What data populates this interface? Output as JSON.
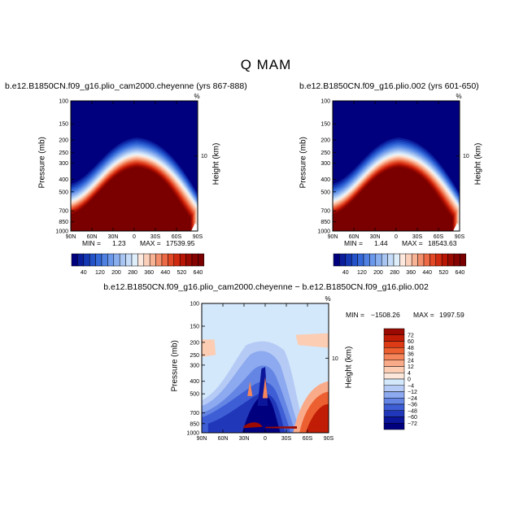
{
  "page_title": "Q MAM",
  "chart_data": [
    {
      "type": "contour",
      "title": "b.e12.B1850CN.f09_g16.plio_cam2000.cheyenne (yrs 867-888)",
      "xlabel": "",
      "ylabel": "Pressure (mb)",
      "ylabel_right": "Height (km)",
      "x_ticks": [
        "90N",
        "60N",
        "30N",
        "0",
        "30S",
        "60S",
        "90S"
      ],
      "y_ticks": [
        "100",
        "150",
        "200",
        "250",
        "300",
        "400",
        "500",
        "700",
        "850",
        "1000"
      ],
      "y_right_ticks": [
        "10"
      ],
      "y_scale": "log",
      "min_label": "MIN =",
      "min_value": "1.23",
      "max_label": "MAX =",
      "max_value": "17539.95",
      "top_marker": "%",
      "colorbar_labels": [
        "40",
        "120",
        "200",
        "280",
        "360",
        "440",
        "520",
        "640"
      ],
      "levels": [
        20,
        40,
        60,
        80,
        100,
        120,
        140,
        160,
        180,
        200,
        220,
        240,
        260,
        280,
        300,
        320,
        340,
        360,
        380,
        400,
        420,
        440,
        460,
        480,
        500,
        520,
        540,
        560,
        580,
        600,
        620,
        640
      ]
    },
    {
      "type": "contour",
      "title": "b.e12.B1850CN.f09_g16.plio.002 (yrs 601-650)",
      "xlabel": "",
      "ylabel": "Pressure (mb)",
      "ylabel_right": "Height (km)",
      "x_ticks": [
        "90N",
        "60N",
        "30N",
        "0",
        "30S",
        "60S",
        "90S"
      ],
      "y_ticks": [
        "100",
        "150",
        "200",
        "250",
        "300",
        "400",
        "500",
        "700",
        "850",
        "1000"
      ],
      "y_right_ticks": [
        "10"
      ],
      "y_scale": "log",
      "min_label": "MIN =",
      "min_value": "1.44",
      "max_label": "MAX =",
      "max_value": "18543.63",
      "top_marker": "%",
      "colorbar_labels": [
        "40",
        "120",
        "200",
        "280",
        "360",
        "440",
        "520",
        "640"
      ],
      "levels": [
        20,
        40,
        60,
        80,
        100,
        120,
        140,
        160,
        180,
        200,
        220,
        240,
        260,
        280,
        300,
        320,
        340,
        360,
        380,
        400,
        420,
        440,
        460,
        480,
        500,
        520,
        540,
        560,
        580,
        600,
        620,
        640
      ]
    },
    {
      "type": "contour",
      "title": "b.e12.B1850CN.f09_g16.plio_cam2000.cheyenne − b.e12.B1850CN.f09_g16.plio.002",
      "xlabel": "",
      "ylabel": "Pressure (mb)",
      "ylabel_right": "Height (km)",
      "x_ticks": [
        "90N",
        "60N",
        "30N",
        "0",
        "30S",
        "60S",
        "90S"
      ],
      "y_ticks": [
        "100",
        "150",
        "200",
        "250",
        "300",
        "400",
        "500",
        "700",
        "850",
        "1000"
      ],
      "y_right_ticks": [
        "10"
      ],
      "y_scale": "log",
      "min_label": "MIN =",
      "min_value": "−1508.26",
      "max_label": "MAX =",
      "max_value": "1997.59",
      "top_marker": "%",
      "colorbar_labels": [
        "72",
        "60",
        "48",
        "36",
        "24",
        "12",
        "4",
        "0",
        "−4",
        "−12",
        "−24",
        "−36",
        "−48",
        "−60",
        "−72"
      ]
    }
  ],
  "colors": {
    "sequential": [
      "#00007f",
      "#0a1d9b",
      "#1437b4",
      "#2251c8",
      "#3468d8",
      "#4f81e2",
      "#6b98ea",
      "#8aafef",
      "#a9c6f3",
      "#c6dcf8",
      "#dfeefb",
      "#fde8de",
      "#fbd0bb",
      "#f8b294",
      "#f38f6c",
      "#ec6a46",
      "#e24826",
      "#d02a10",
      "#b81505",
      "#9b0a00",
      "#850300",
      "#7a0000"
    ],
    "diverging_top_to_bottom": [
      "#9b0a00",
      "#c01c06",
      "#dc3b16",
      "#ec5f30",
      "#f5855a",
      "#f9ab89",
      "#fccdb3",
      "#fde7db",
      "#d3e8fb",
      "#b5cbf5",
      "#8da9ef",
      "#6485e3",
      "#3d5ed5",
      "#2137ba",
      "#0b169a",
      "#00007f"
    ],
    "background_blue": "#00007f",
    "background_red": "#7a0000",
    "neutral": "#d3e8fb"
  }
}
